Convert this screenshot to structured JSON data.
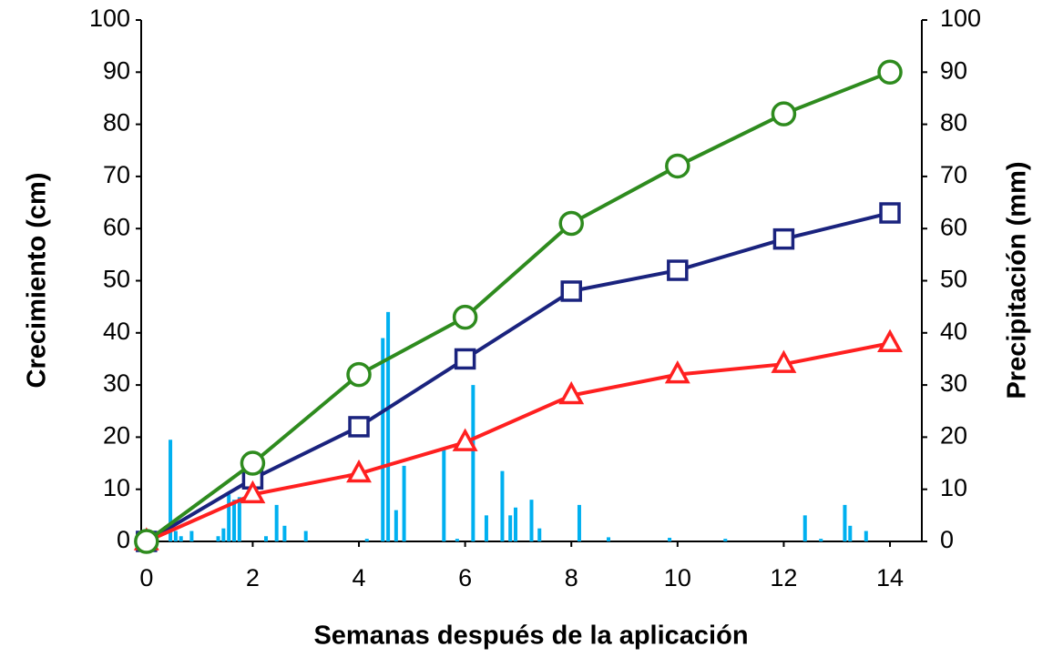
{
  "chart_data": {
    "type": "line",
    "xlabel": "Semanas después de la aplicación",
    "ylabel": "Crecimiento (cm)",
    "y2label": "Precipitación (mm)",
    "xlim": [
      -0.1,
      14.6
    ],
    "xticks": [
      0,
      2,
      4,
      6,
      8,
      10,
      12,
      14
    ],
    "ylim": [
      0,
      100
    ],
    "yticks": [
      0,
      10,
      20,
      30,
      40,
      50,
      60,
      70,
      80,
      90,
      100
    ],
    "y2lim": [
      0,
      100
    ],
    "y2ticks": [
      0,
      10,
      20,
      30,
      40,
      50,
      60,
      70,
      80,
      90,
      100
    ],
    "grid": false,
    "series": [
      {
        "type": "bar",
        "axis": "y2",
        "color": "#00b0f0",
        "x": [
          0.45,
          0.55,
          0.65,
          0.85,
          1.35,
          1.45,
          1.55,
          1.65,
          1.75,
          2.25,
          2.45,
          2.6,
          3.0,
          4.15,
          4.45,
          4.55,
          4.7,
          4.85,
          5.6,
          5.85,
          6.15,
          6.4,
          6.7,
          6.85,
          6.95,
          7.25,
          7.4,
          8.15,
          8.7,
          9.85,
          10.9,
          12.4,
          12.7,
          13.15,
          13.25,
          13.55
        ],
        "values": [
          19.5,
          2,
          1,
          2,
          1,
          2.5,
          9,
          8,
          8.5,
          1,
          7,
          3,
          2,
          0.5,
          39,
          44,
          6,
          14.5,
          18,
          0.5,
          30,
          5,
          13.5,
          5,
          6.5,
          8,
          2.5,
          7,
          0.8,
          0.7,
          0.5,
          5,
          0.5,
          7,
          3,
          2
        ]
      },
      {
        "type": "line",
        "marker": "square",
        "color": "#1a237e",
        "x": [
          0,
          2,
          4,
          6,
          8,
          10,
          12,
          14
        ],
        "values": [
          0,
          12,
          22,
          35,
          48,
          52,
          58,
          63
        ]
      },
      {
        "type": "line",
        "marker": "triangle",
        "color": "#ff2020",
        "x": [
          0,
          2,
          4,
          6,
          8,
          10,
          12,
          14
        ],
        "values": [
          0,
          9,
          13,
          19,
          28,
          32,
          34,
          38
        ]
      },
      {
        "type": "line",
        "marker": "circle",
        "color": "#2e8b1e",
        "x": [
          0,
          2,
          4,
          6,
          8,
          10,
          12,
          14
        ],
        "values": [
          0,
          15,
          32,
          43,
          61,
          72,
          82,
          90
        ]
      }
    ]
  }
}
